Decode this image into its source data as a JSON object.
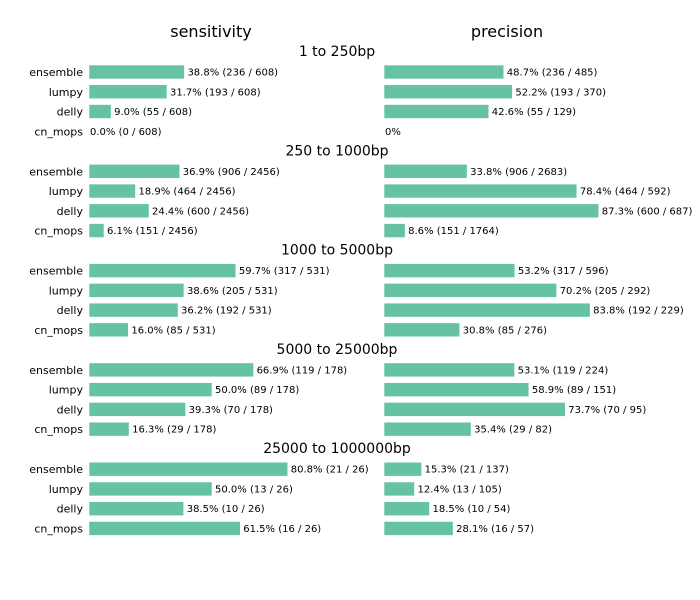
{
  "chart_data": {
    "type": "bar",
    "orientation": "horizontal",
    "columns": [
      "sensitivity",
      "precision"
    ],
    "methods": [
      "ensemble",
      "lumpy",
      "delly",
      "cn_mops"
    ],
    "bar_color": "#66c2a5",
    "xlim": [
      0,
      100
    ],
    "grid": false,
    "groups": [
      {
        "title": "1 to 250bp",
        "sensitivity": [
          38.8,
          31.7,
          9.0,
          0.0
        ],
        "sensitivity_labels": [
          "38.8% (236 / 608)",
          "31.7% (193 / 608)",
          "9.0% (55 / 608)",
          "0.0% (0 / 608)"
        ],
        "precision": [
          48.7,
          52.2,
          42.6,
          0
        ],
        "precision_labels": [
          "48.7% (236 / 485)",
          "52.2% (193 / 370)",
          "42.6% (55 / 129)",
          "0%"
        ]
      },
      {
        "title": "250 to 1000bp",
        "sensitivity": [
          36.9,
          18.9,
          24.4,
          6.1
        ],
        "sensitivity_labels": [
          "36.9% (906 / 2456)",
          "18.9% (464 / 2456)",
          "24.4% (600 / 2456)",
          "6.1% (151 / 2456)"
        ],
        "precision": [
          33.8,
          78.4,
          87.3,
          8.6
        ],
        "precision_labels": [
          "33.8% (906 / 2683)",
          "78.4% (464 / 592)",
          "87.3% (600 / 687)",
          "8.6% (151 / 1764)"
        ]
      },
      {
        "title": "1000 to 5000bp",
        "sensitivity": [
          59.7,
          38.6,
          36.2,
          16.0
        ],
        "sensitivity_labels": [
          "59.7% (317 / 531)",
          "38.6% (205 / 531)",
          "36.2% (192 / 531)",
          "16.0% (85 / 531)"
        ],
        "precision": [
          53.2,
          70.2,
          83.8,
          30.8
        ],
        "precision_labels": [
          "53.2% (317 / 596)",
          "70.2% (205 / 292)",
          "83.8% (192 / 229)",
          "30.8% (85 / 276)"
        ]
      },
      {
        "title": "5000 to 25000bp",
        "sensitivity": [
          66.9,
          50.0,
          39.3,
          16.3
        ],
        "sensitivity_labels": [
          "66.9% (119 / 178)",
          "50.0% (89 / 178)",
          "39.3% (70 / 178)",
          "16.3% (29 / 178)"
        ],
        "precision": [
          53.1,
          58.9,
          73.7,
          35.4
        ],
        "precision_labels": [
          "53.1% (119 / 224)",
          "58.9% (89 / 151)",
          "73.7% (70 / 95)",
          "35.4% (29 / 82)"
        ]
      },
      {
        "title": "25000 to 1000000bp",
        "sensitivity": [
          80.8,
          50.0,
          38.5,
          61.5
        ],
        "sensitivity_labels": [
          "80.8% (21 / 26)",
          "50.0% (13 / 26)",
          "38.5% (10 / 26)",
          "61.5% (16 / 26)"
        ],
        "precision": [
          15.3,
          12.4,
          18.5,
          28.1
        ],
        "precision_labels": [
          "15.3% (21 / 137)",
          "12.4% (13 / 105)",
          "18.5% (10 / 54)",
          "28.1% (16 / 57)"
        ]
      }
    ]
  }
}
